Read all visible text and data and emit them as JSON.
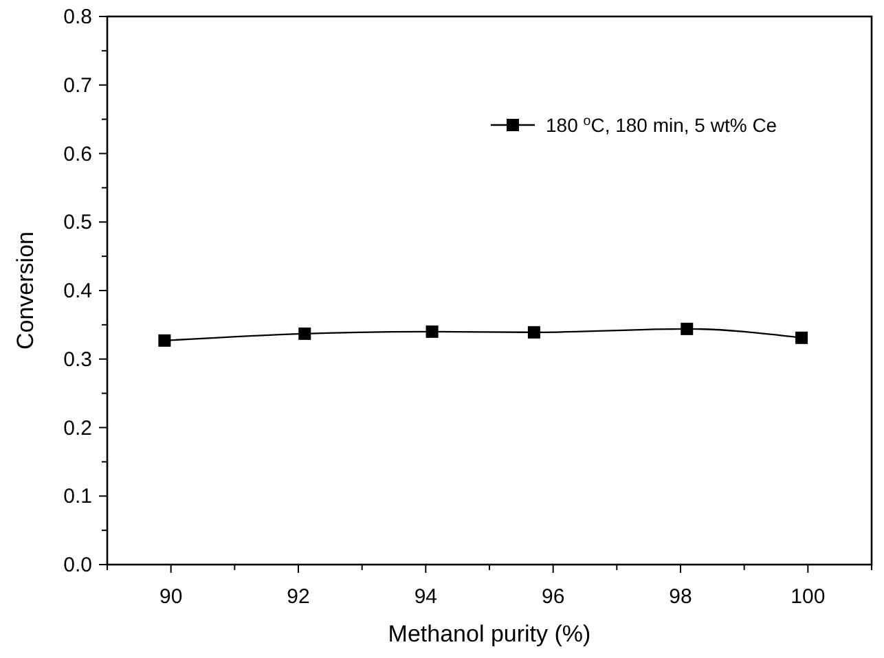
{
  "chart_data": {
    "type": "line",
    "xlabel": "Methanol purity (%)",
    "ylabel": "Conversion",
    "x": [
      89.9,
      92.1,
      94.1,
      95.7,
      98.1,
      99.9
    ],
    "series": [
      {
        "name": "180 $^{o}$C, 180 min, 5 wt% Ce",
        "color": "#000000",
        "values": [
          0.327,
          0.337,
          0.34,
          0.339,
          0.344,
          0.331
        ]
      }
    ],
    "xlim": [
      89,
      101
    ],
    "xticks": [
      {
        "value": 89,
        "label": null
      },
      90,
      {
        "value": 91,
        "label": null
      },
      92,
      {
        "value": 93,
        "label": null
      },
      94,
      {
        "value": 95,
        "label": null
      },
      96,
      {
        "value": 97,
        "label": null
      },
      98,
      {
        "value": 99,
        "label": null
      },
      100,
      {
        "value": 101,
        "label": null
      }
    ],
    "ylim": [
      0,
      0.8
    ],
    "yticks": [
      {
        "value": 0,
        "label": "0.0"
      },
      {
        "value": 0.05,
        "label": null
      },
      0.1,
      {
        "value": 0.15,
        "label": null
      },
      0.2,
      {
        "value": 0.25,
        "label": null
      },
      0.3,
      {
        "value": 0.35,
        "label": null
      },
      0.4,
      {
        "value": 0.45,
        "label": null
      },
      0.5,
      {
        "value": 0.55,
        "label": null
      },
      0.6,
      {
        "value": 0.65,
        "label": null
      },
      0.7,
      {
        "value": 0.75,
        "label": null
      },
      0.8
    ],
    "legend": "top right",
    "marker": "square",
    "line_style": "solid"
  }
}
